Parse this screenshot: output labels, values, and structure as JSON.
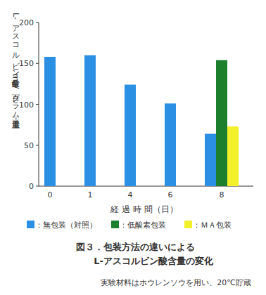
{
  "chart_data": {
    "type": "bar",
    "title": "図３．包装方法の違いによる",
    "subtitle": "L-アスコルビン酸含量の変化",
    "annotations": [
      "実験材料はホウレンソウを用い、20℃貯蔵"
    ],
    "y_label": "L-アスコルビン酸量（mg/百グラム・湿重量）",
    "x_label": "経 過 時 間（日）",
    "categories": [
      "0",
      "1",
      "4",
      "6",
      "8"
    ],
    "series": [
      {
        "name": "：無包装（対照）",
        "color": "#2b8fe3",
        "values": [
          158,
          160,
          124,
          101,
          64
        ]
      },
      {
        "name": "：低酸素包装",
        "color": "#1b7f2e",
        "values": [
          null,
          null,
          null,
          null,
          154
        ]
      },
      {
        "name": "：ＭＡ包装",
        "color": "#f2f02a",
        "values": [
          null,
          null,
          null,
          null,
          73
        ]
      }
    ],
    "ylim": [
      0,
      200
    ],
    "yticks": [
      0,
      50,
      100,
      150,
      200
    ],
    "grid": false
  }
}
